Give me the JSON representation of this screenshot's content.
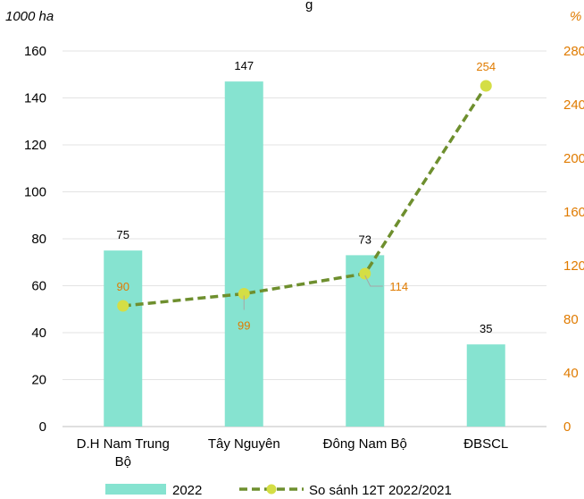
{
  "chart_data": {
    "type": "bar",
    "title": "g",
    "categories": [
      "D.H Nam Trung Bộ",
      "Tây Nguyên",
      "Đông Nam Bộ",
      "ĐBSCL"
    ],
    "category_lines": [
      [
        "D.H Nam Trung",
        "Bộ"
      ],
      [
        "Tây Nguyên"
      ],
      [
        "Đông Nam Bộ"
      ],
      [
        "ĐBSCL"
      ]
    ],
    "series": [
      {
        "name": "2022",
        "type": "bar",
        "axis": "left",
        "values": [
          75,
          147,
          73,
          35
        ],
        "labels": [
          "75",
          "147",
          "73",
          "35"
        ],
        "color": "#86E3D0"
      },
      {
        "name": "So sánh 12T 2022/2021",
        "type": "line",
        "axis": "right",
        "values": [
          90,
          99,
          114,
          254
        ],
        "labels": [
          "90",
          "99",
          "114",
          "254"
        ],
        "color": "#6E8F2E",
        "marker_color": "#D4DE45"
      }
    ],
    "y_left": {
      "label": "1000 ha",
      "ylim": [
        0,
        160
      ],
      "ticks": [
        "0",
        "20",
        "40",
        "60",
        "80",
        "100",
        "120",
        "140",
        "160"
      ]
    },
    "y_right": {
      "label": "%",
      "ylim": [
        0,
        280
      ],
      "ticks": [
        "0",
        "40",
        "80",
        "120",
        "160",
        "200",
        "240",
        "280"
      ],
      "color": "#E07B00"
    },
    "grid": true,
    "legend_position": "bottom"
  }
}
